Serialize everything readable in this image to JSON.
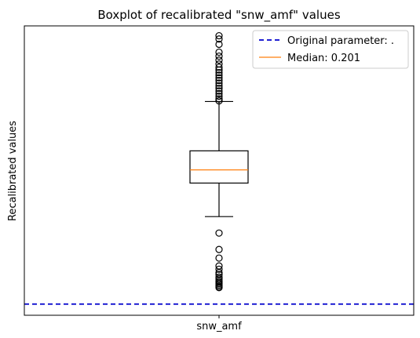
{
  "chart_data": {
    "type": "box",
    "title": "Boxplot of recalibrated \"snw_amf\" values",
    "xlabel": "",
    "ylabel": "Recalibrated values",
    "categories": [
      "snw_amf"
    ],
    "y_ticks_shown": false,
    "grid": false,
    "ylim": [
      -0.02,
      0.42
    ],
    "box": {
      "q1": 0.181,
      "median": 0.201,
      "q3": 0.23,
      "whisker_low": 0.13,
      "whisker_high": 0.305
    },
    "outliers": [
      0.105,
      0.08,
      0.067,
      0.055,
      0.05,
      0.045,
      0.042,
      0.038,
      0.035,
      0.032,
      0.03,
      0.028,
      0.026,
      0.024,
      0.022,
      0.306,
      0.309,
      0.313,
      0.317,
      0.321,
      0.325,
      0.329,
      0.333,
      0.337,
      0.341,
      0.345,
      0.349,
      0.353,
      0.357,
      0.362,
      0.368,
      0.374,
      0.38,
      0.392,
      0.4,
      0.405
    ],
    "reference_line": {
      "label": "Original parameter: .",
      "value": -0.003,
      "color": "#0000cc",
      "style": "dashed"
    },
    "median_color": "#ff7f0e",
    "legend": {
      "position": "top-right",
      "entries": [
        {
          "label": "Original parameter: .",
          "color": "#0000cc",
          "style": "dashed"
        },
        {
          "label": "Median: 0.201",
          "color": "#ff7f0e",
          "style": "solid"
        }
      ]
    }
  }
}
